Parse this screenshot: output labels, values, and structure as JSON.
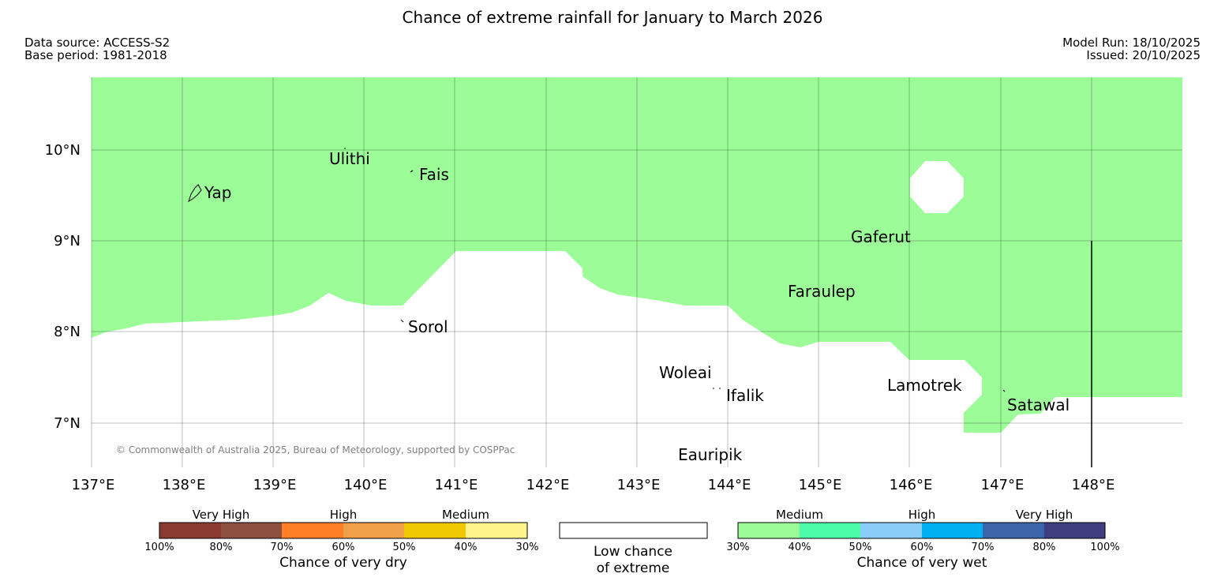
{
  "title": "Chance of extreme rainfall for January to March 2026",
  "meta": {
    "data_source": "Data source: ACCESS-S2",
    "base_period": "Base period: 1981-2018",
    "model_run": "Model Run: 18/10/2025",
    "issued": "Issued: 20/10/2025"
  },
  "map": {
    "lon_labels": [
      "137°E",
      "138°E",
      "139°E",
      "140°E",
      "141°E",
      "142°E",
      "143°E",
      "144°E",
      "145°E",
      "146°E",
      "147°E",
      "148°E"
    ],
    "lat_labels": [
      "10°N",
      "9°N",
      "8°N",
      "7°N"
    ],
    "islands": {
      "yap": "Yap",
      "ulithi": "Ulithi",
      "fais": "Fais",
      "gaferut": "Gaferut",
      "faraulep": "Faraulep",
      "sorol": "Sorol",
      "woleai": "Woleai",
      "ifalik": "Ifalik",
      "lamotrek": "Lamotrek",
      "satawal": "Satawal",
      "eauripik": "Eauripik"
    },
    "copyright": "© Commonwealth of Australia 2025, Bureau of Meteorology, supported by COSPPac",
    "fill_color": "#9cfc98"
  },
  "legend": {
    "dry": {
      "title": "Chance of very dry",
      "categories": [
        "Very High",
        "High",
        "Medium"
      ],
      "ticks": [
        "100%",
        "80%",
        "70%",
        "60%",
        "50%",
        "40%",
        "30%"
      ],
      "colors": [
        "#8b3a32",
        "#8b5040",
        "#ff7f27",
        "#f0a048",
        "#f0c800",
        "#fff48c"
      ]
    },
    "low": {
      "line1": "Low chance",
      "line2": "of extreme"
    },
    "wet": {
      "title": "Chance of very wet",
      "categories": [
        "Medium",
        "High",
        "Very High"
      ],
      "ticks": [
        "30%",
        "40%",
        "50%",
        "60%",
        "70%",
        "80%",
        "100%"
      ],
      "colors": [
        "#9cfc98",
        "#4cfca8",
        "#88ccf8",
        "#00b0f0",
        "#3c64a8",
        "#403c80"
      ]
    }
  }
}
